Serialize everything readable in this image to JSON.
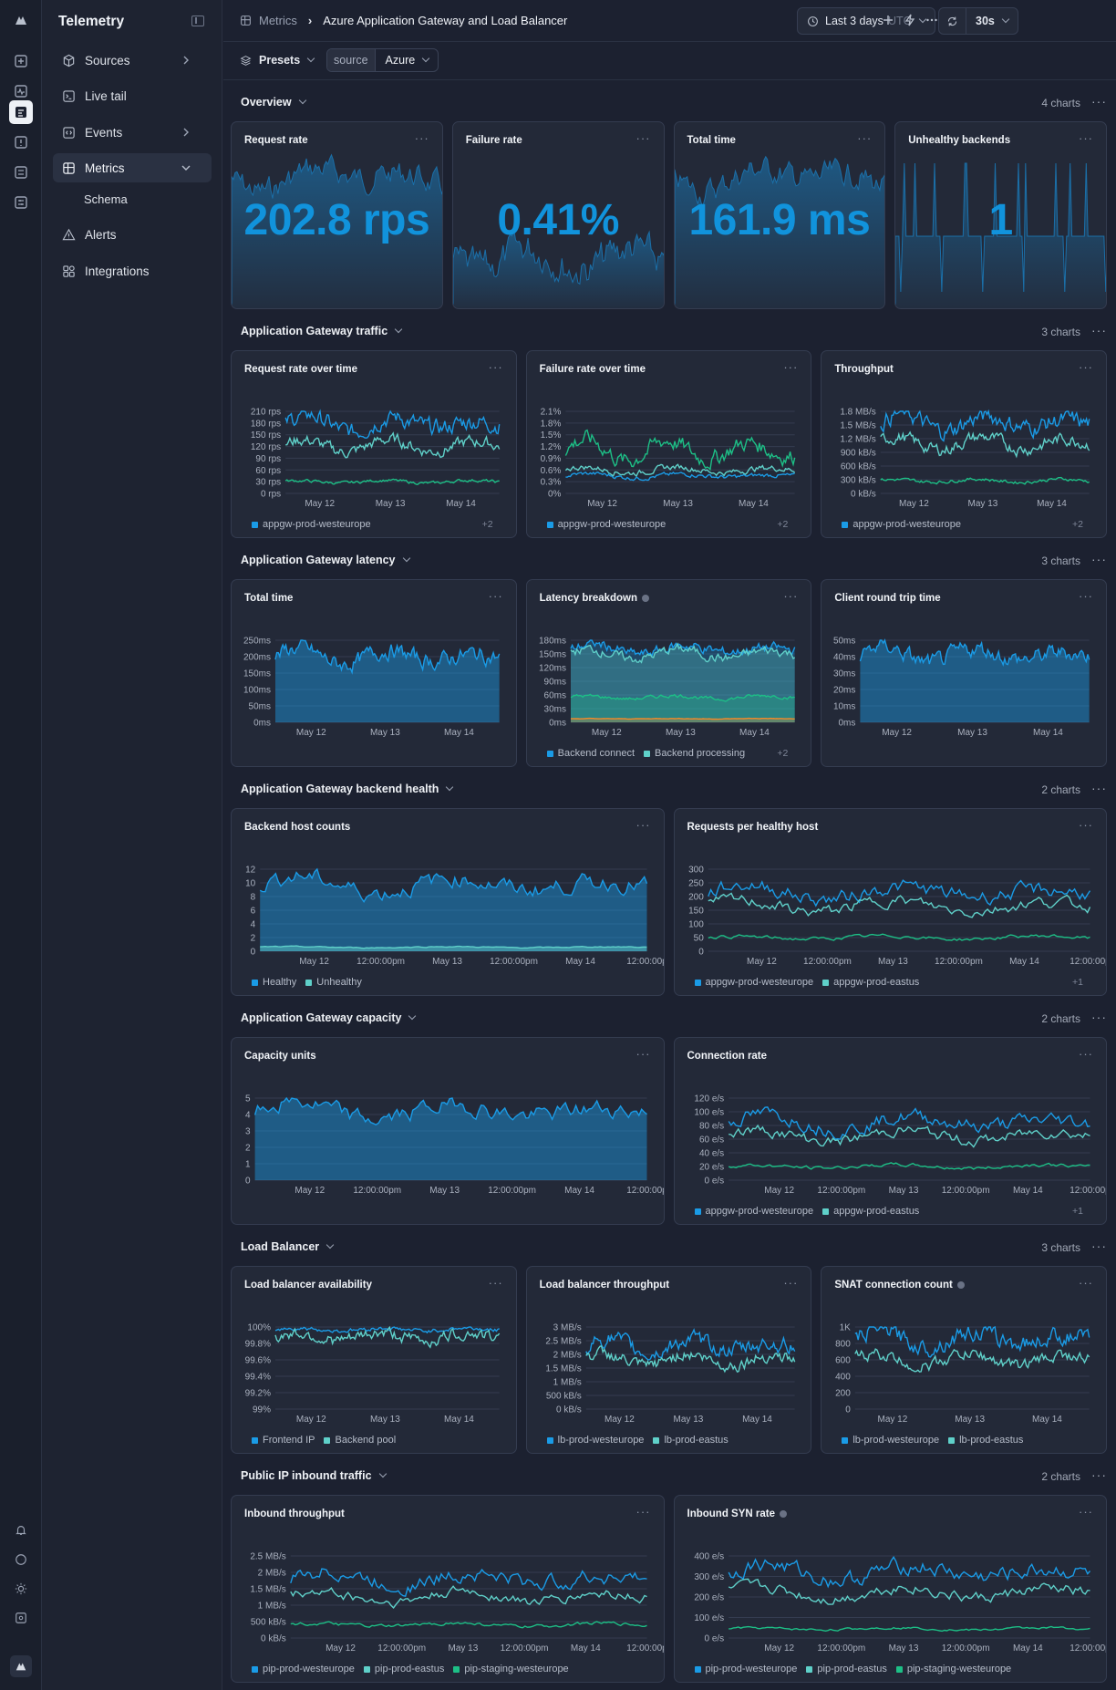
{
  "app": {
    "title": "Telemetry"
  },
  "sidebar": {
    "items": [
      {
        "label": "Sources",
        "icon": "cube-icon"
      },
      {
        "label": "Live tail",
        "icon": "terminal-icon"
      },
      {
        "label": "Events",
        "icon": "code-icon"
      },
      {
        "label": "Metrics",
        "icon": "grid-icon"
      },
      {
        "label": "Schema"
      },
      {
        "label": "Alerts",
        "icon": "warning-icon"
      },
      {
        "label": "Integrations",
        "icon": "puzzle-icon"
      }
    ]
  },
  "header": {
    "breadcrumb_root": "Metrics",
    "breadcrumb_current": "Azure Application Gateway and Load Balancer",
    "time_range": "Last 3 days",
    "timezone": "UTC",
    "refresh": "30s"
  },
  "filters": {
    "presets_label": "Presets",
    "source_key": "source",
    "source_value": "Azure"
  },
  "sections": [
    {
      "title": "Overview",
      "count": "4 charts"
    },
    {
      "title": "Application Gateway traffic",
      "count": "3 charts"
    },
    {
      "title": "Application Gateway latency",
      "count": "3 charts"
    },
    {
      "title": "Application Gateway backend health",
      "count": "2 charts"
    },
    {
      "title": "Application Gateway capacity",
      "count": "2 charts"
    },
    {
      "title": "Load Balancer",
      "count": "3 charts"
    },
    {
      "title": "Public IP inbound traffic",
      "count": "2 charts"
    }
  ],
  "stats": [
    {
      "title": "Request rate",
      "value": "202.8 rps"
    },
    {
      "title": "Failure rate",
      "value": "0.41%"
    },
    {
      "title": "Total time",
      "value": "161.9 ms"
    },
    {
      "title": "Unhealthy backends",
      "value": "1"
    }
  ],
  "colors": {
    "blue": "#1a9be6",
    "teal": "#5fd0c9",
    "green": "#1dbf86",
    "orange": "#f08a2b",
    "yellow": "#e8c547"
  },
  "charts": [
    {
      "title": "Request rate over time",
      "yticks": [
        "210 rps",
        "180 rps",
        "150 rps",
        "120 rps",
        "90 rps",
        "60 rps",
        "30 rps",
        "0 rps"
      ],
      "ymax": 210,
      "xticks": [
        "May 12",
        "May 13",
        "May 14"
      ],
      "legend": [
        "appgw-prod-westeurope"
      ],
      "more": "+2",
      "series": [
        178,
        122,
        30
      ],
      "colors": [
        "blue",
        "teal",
        "green"
      ],
      "kind": "line"
    },
    {
      "title": "Failure rate over time",
      "yticks": [
        "2.1%",
        "1.8%",
        "1.5%",
        "1.2%",
        "0.9%",
        "0.6%",
        "0.3%",
        "0%"
      ],
      "ymax": 2.1,
      "xticks": [
        "May 12",
        "May 13",
        "May 14"
      ],
      "legend": [
        "appgw-prod-westeurope"
      ],
      "more": "+2",
      "series": [
        0.45,
        0.6,
        1.1
      ],
      "colors": [
        "blue",
        "teal",
        "green"
      ],
      "kind": "line"
    },
    {
      "title": "Throughput",
      "yticks": [
        "1.8 MB/s",
        "1.5 MB/s",
        "1.2 MB/s",
        "900 kB/s",
        "600 kB/s",
        "300 kB/s",
        "0 kB/s"
      ],
      "ymax": 1.8,
      "xticks": [
        "May 12",
        "May 13",
        "May 14"
      ],
      "legend": [
        "appgw-prod-westeurope"
      ],
      "more": "+2",
      "series": [
        1.55,
        1.1,
        0.28
      ],
      "colors": [
        "blue",
        "teal",
        "green"
      ],
      "kind": "line"
    },
    {
      "title": "Total time",
      "yticks": [
        "250ms",
        "200ms",
        "150ms",
        "100ms",
        "50ms",
        "0ms"
      ],
      "ymax": 250,
      "xticks": [
        "May 12",
        "May 13",
        "May 14"
      ],
      "legend": [],
      "more": "",
      "series": [
        200
      ],
      "colors": [
        "blue"
      ],
      "kind": "area"
    },
    {
      "title": "Latency breakdown",
      "info": true,
      "yticks": [
        "180ms",
        "150ms",
        "120ms",
        "90ms",
        "60ms",
        "30ms",
        "0ms"
      ],
      "ymax": 180,
      "xticks": [
        "May 12",
        "May 13",
        "May 14"
      ],
      "legend": [
        "Backend connect",
        "Backend processing"
      ],
      "more": "+2",
      "series": [
        160,
        150,
        55,
        8
      ],
      "colors": [
        "blue",
        "teal",
        "green",
        "orange"
      ],
      "kind": "stack"
    },
    {
      "title": "Client round trip time",
      "yticks": [
        "50ms",
        "40ms",
        "30ms",
        "20ms",
        "10ms",
        "0ms"
      ],
      "ymax": 50,
      "xticks": [
        "May 12",
        "May 13",
        "May 14"
      ],
      "legend": [],
      "more": "",
      "series": [
        41
      ],
      "colors": [
        "blue"
      ],
      "kind": "area"
    },
    {
      "title": "Backend host counts",
      "yticks": [
        "12",
        "10",
        "8",
        "6",
        "4",
        "2",
        "0"
      ],
      "ymax": 12,
      "xticks": [
        "May 12",
        "12:00:00pm",
        "May 13",
        "12:00:00pm",
        "May 14",
        "12:00:00p"
      ],
      "legend": [
        "Healthy",
        "Unhealthy"
      ],
      "more": "",
      "series": [
        9.7,
        0.6
      ],
      "colors": [
        "blue",
        "teal"
      ],
      "kind": "area"
    },
    {
      "title": "Requests per healthy host",
      "yticks": [
        "300",
        "250",
        "200",
        "150",
        "100",
        "50",
        "0"
      ],
      "ymax": 300,
      "xticks": [
        "May 12",
        "12:00:00pm",
        "May 13",
        "12:00:00pm",
        "May 14",
        "12:00:00p"
      ],
      "legend": [
        "appgw-prod-westeurope",
        "appgw-prod-eastus"
      ],
      "more": "+1",
      "series": [
        215,
        165,
        50
      ],
      "colors": [
        "blue",
        "teal",
        "green"
      ],
      "kind": "line"
    },
    {
      "title": "Capacity units",
      "yticks": [
        "5",
        "4",
        "3",
        "2",
        "1",
        "0"
      ],
      "ymax": 5,
      "xticks": [
        "May 12",
        "12:00:00pm",
        "May 13",
        "12:00:00pm",
        "May 14",
        "12:00:00p"
      ],
      "legend": [],
      "more": "",
      "series": [
        4.2
      ],
      "colors": [
        "blue"
      ],
      "kind": "area"
    },
    {
      "title": "Connection rate",
      "yticks": [
        "120 e/s",
        "100 e/s",
        "80 e/s",
        "60 e/s",
        "40 e/s",
        "20 e/s",
        "0 e/s"
      ],
      "ymax": 120,
      "xticks": [
        "May 12",
        "12:00:00pm",
        "May 13",
        "12:00:00pm",
        "May 14",
        "12:00:00p"
      ],
      "legend": [
        "appgw-prod-westeurope",
        "appgw-prod-eastus"
      ],
      "more": "+1",
      "series": [
        85,
        65,
        20
      ],
      "colors": [
        "blue",
        "teal",
        "green"
      ],
      "kind": "line"
    },
    {
      "title": "Load balancer availability",
      "yticks": [
        "100%",
        "99.8%",
        "99.6%",
        "99.4%",
        "99.2%",
        "99%"
      ],
      "ymax": 1,
      "xticks": [
        "May 12",
        "May 13",
        "May 14"
      ],
      "legend": [
        "Frontend IP",
        "Backend pool"
      ],
      "more": "",
      "series": [
        0.97,
        0.88
      ],
      "colors": [
        "blue",
        "teal"
      ],
      "kind": "line"
    },
    {
      "title": "Load balancer throughput",
      "yticks": [
        "3 MB/s",
        "2.5 MB/s",
        "2 MB/s",
        "1.5 MB/s",
        "1 MB/s",
        "500 kB/s",
        "0 kB/s"
      ],
      "ymax": 3,
      "xticks": [
        "May 12",
        "May 13",
        "May 14"
      ],
      "legend": [
        "lb-prod-westeurope",
        "lb-prod-eastus"
      ],
      "more": "",
      "series": [
        2.3,
        1.8
      ],
      "colors": [
        "blue",
        "teal"
      ],
      "kind": "line"
    },
    {
      "title": "SNAT connection count",
      "info": true,
      "yticks": [
        "1K",
        "800",
        "600",
        "400",
        "200",
        "0"
      ],
      "ymax": 1000,
      "xticks": [
        "May 12",
        "May 13",
        "May 14"
      ],
      "legend": [
        "lb-prod-westeurope",
        "lb-prod-eastus"
      ],
      "more": "",
      "series": [
        860,
        600
      ],
      "colors": [
        "blue",
        "teal"
      ],
      "kind": "line"
    },
    {
      "title": "Inbound throughput",
      "yticks": [
        "2.5 MB/s",
        "2 MB/s",
        "1.5 MB/s",
        "1 MB/s",
        "500 kB/s",
        "0 kB/s"
      ],
      "ymax": 2.5,
      "xticks": [
        "May 12",
        "12:00:00pm",
        "May 13",
        "12:00:00pm",
        "May 14",
        "12:00:00p"
      ],
      "legend": [
        "pip-prod-westeurope",
        "pip-prod-eastus",
        "pip-staging-westeurope"
      ],
      "more": "",
      "series": [
        1.8,
        1.25,
        0.4
      ],
      "colors": [
        "blue",
        "teal",
        "green"
      ],
      "kind": "line"
    },
    {
      "title": "Inbound SYN rate",
      "info": true,
      "yticks": [
        "400 e/s",
        "300 e/s",
        "200 e/s",
        "100 e/s",
        "0 e/s"
      ],
      "ymax": 400,
      "xticks": [
        "May 12",
        "12:00:00pm",
        "May 13",
        "12:00:00pm",
        "May 14",
        "12:00:00p"
      ],
      "legend": [
        "pip-prod-westeurope",
        "pip-prod-eastus",
        "pip-staging-westeurope"
      ],
      "more": "",
      "series": [
        320,
        220,
        45
      ],
      "colors": [
        "blue",
        "teal",
        "green"
      ],
      "kind": "line"
    }
  ]
}
